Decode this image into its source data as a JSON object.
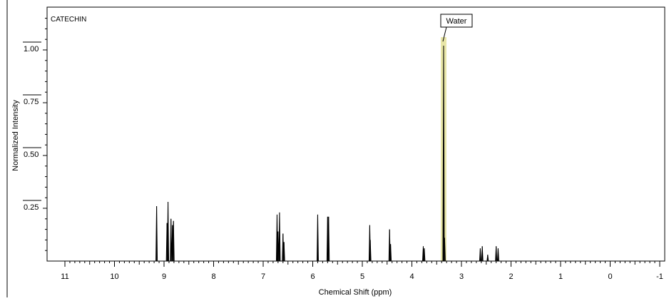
{
  "chart_data": {
    "type": "line",
    "title": "CATECHIN",
    "xlabel": "Chemical Shift (ppm)",
    "ylabel": "Normalized Intensity",
    "xlim": [
      11.0,
      -1.0
    ],
    "xaxis_reversed": true,
    "ylim": [
      0.0,
      1.2
    ],
    "x_ticks": [
      "11",
      "10",
      "9",
      "8",
      "7",
      "6",
      "5",
      "4",
      "3",
      "2",
      "1",
      "0",
      "-1"
    ],
    "y_ticks": [
      "0.25",
      "0.50",
      "0.75",
      "1.00"
    ],
    "grid": false,
    "series": [
      {
        "peaks": [
          {
            "x": 9.15,
            "y": 0.26
          },
          {
            "x": 8.94,
            "y": 0.18
          },
          {
            "x": 8.92,
            "y": 0.28
          },
          {
            "x": 8.86,
            "y": 0.2
          },
          {
            "x": 8.83,
            "y": 0.17
          },
          {
            "x": 8.81,
            "y": 0.19
          },
          {
            "x": 6.72,
            "y": 0.22
          },
          {
            "x": 6.7,
            "y": 0.14
          },
          {
            "x": 6.67,
            "y": 0.23
          },
          {
            "x": 6.6,
            "y": 0.13
          },
          {
            "x": 6.58,
            "y": 0.09
          },
          {
            "x": 5.9,
            "y": 0.22
          },
          {
            "x": 5.7,
            "y": 0.21
          },
          {
            "x": 5.68,
            "y": 0.21
          },
          {
            "x": 4.85,
            "y": 0.17
          },
          {
            "x": 4.84,
            "y": 0.1
          },
          {
            "x": 4.45,
            "y": 0.15
          },
          {
            "x": 4.43,
            "y": 0.08
          },
          {
            "x": 3.77,
            "y": 0.07
          },
          {
            "x": 3.75,
            "y": 0.06
          },
          {
            "x": 3.36,
            "y": 1.02
          },
          {
            "x": 3.34,
            "y": 0.11
          },
          {
            "x": 2.62,
            "y": 0.06
          },
          {
            "x": 2.58,
            "y": 0.07
          },
          {
            "x": 2.47,
            "y": 0.03
          },
          {
            "x": 2.3,
            "y": 0.07
          },
          {
            "x": 2.26,
            "y": 0.06
          }
        ]
      }
    ],
    "annotations": [
      {
        "text": "Water",
        "x": 3.36,
        "y": 1.02,
        "highlight_color": "#e8e6a8"
      }
    ],
    "colors": {
      "line": "#000000",
      "highlight": "#e8e6a8",
      "frame": "#000000"
    }
  }
}
